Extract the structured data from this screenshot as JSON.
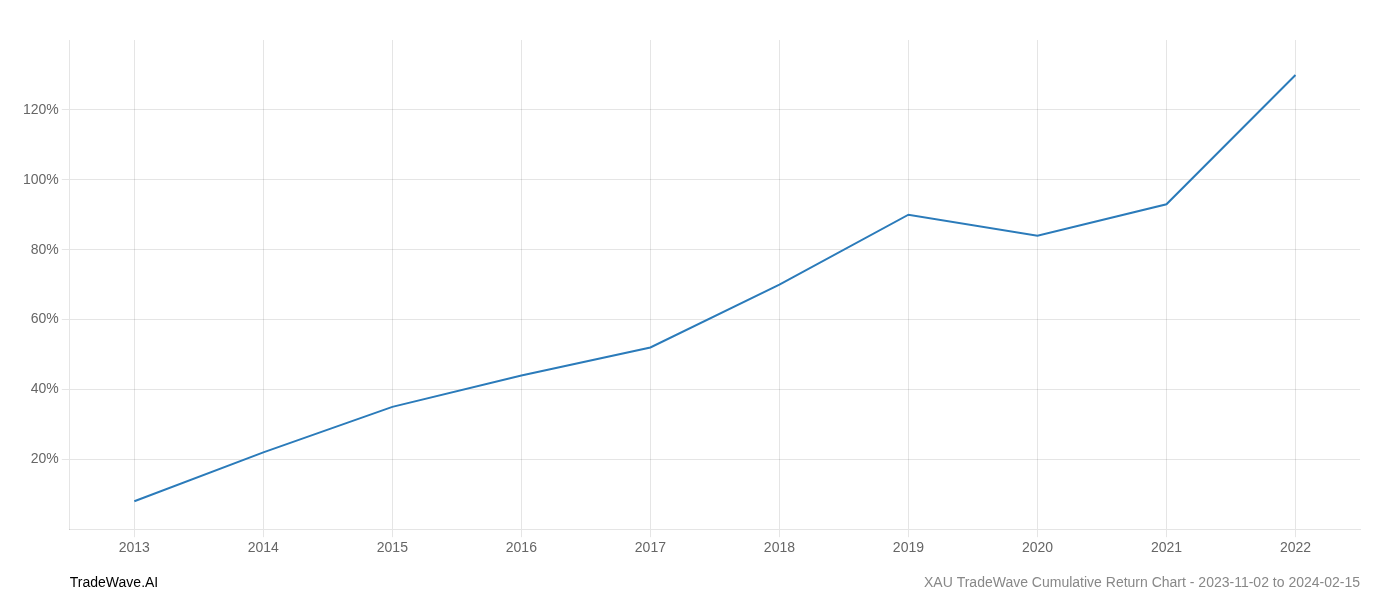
{
  "chart_data": {
    "type": "line",
    "x": [
      2013,
      2014,
      2015,
      2016,
      2017,
      2018,
      2019,
      2020,
      2021,
      2022
    ],
    "values": [
      8,
      22,
      35,
      44,
      52,
      70,
      90,
      84,
      93,
      130
    ],
    "color": "#2b7bba",
    "xlim": [
      2012.5,
      2022.5
    ],
    "xticks": [
      2013,
      2014,
      2015,
      2016,
      2017,
      2018,
      2019,
      2020,
      2021,
      2022
    ],
    "ylim": [
      0,
      140
    ],
    "yticks": [
      {
        "value": 20,
        "label": "20%"
      },
      {
        "value": 40,
        "label": "40%"
      },
      {
        "value": 60,
        "label": "60%"
      },
      {
        "value": 80,
        "label": "80%"
      },
      {
        "value": 100,
        "label": "100%"
      },
      {
        "value": 120,
        "label": "120%"
      }
    ],
    "grid": true,
    "annotations": [
      "TradeWave.AI",
      "XAU TradeWave Cumulative Return Chart - 2023-11-02 to 2024-02-15"
    ]
  }
}
